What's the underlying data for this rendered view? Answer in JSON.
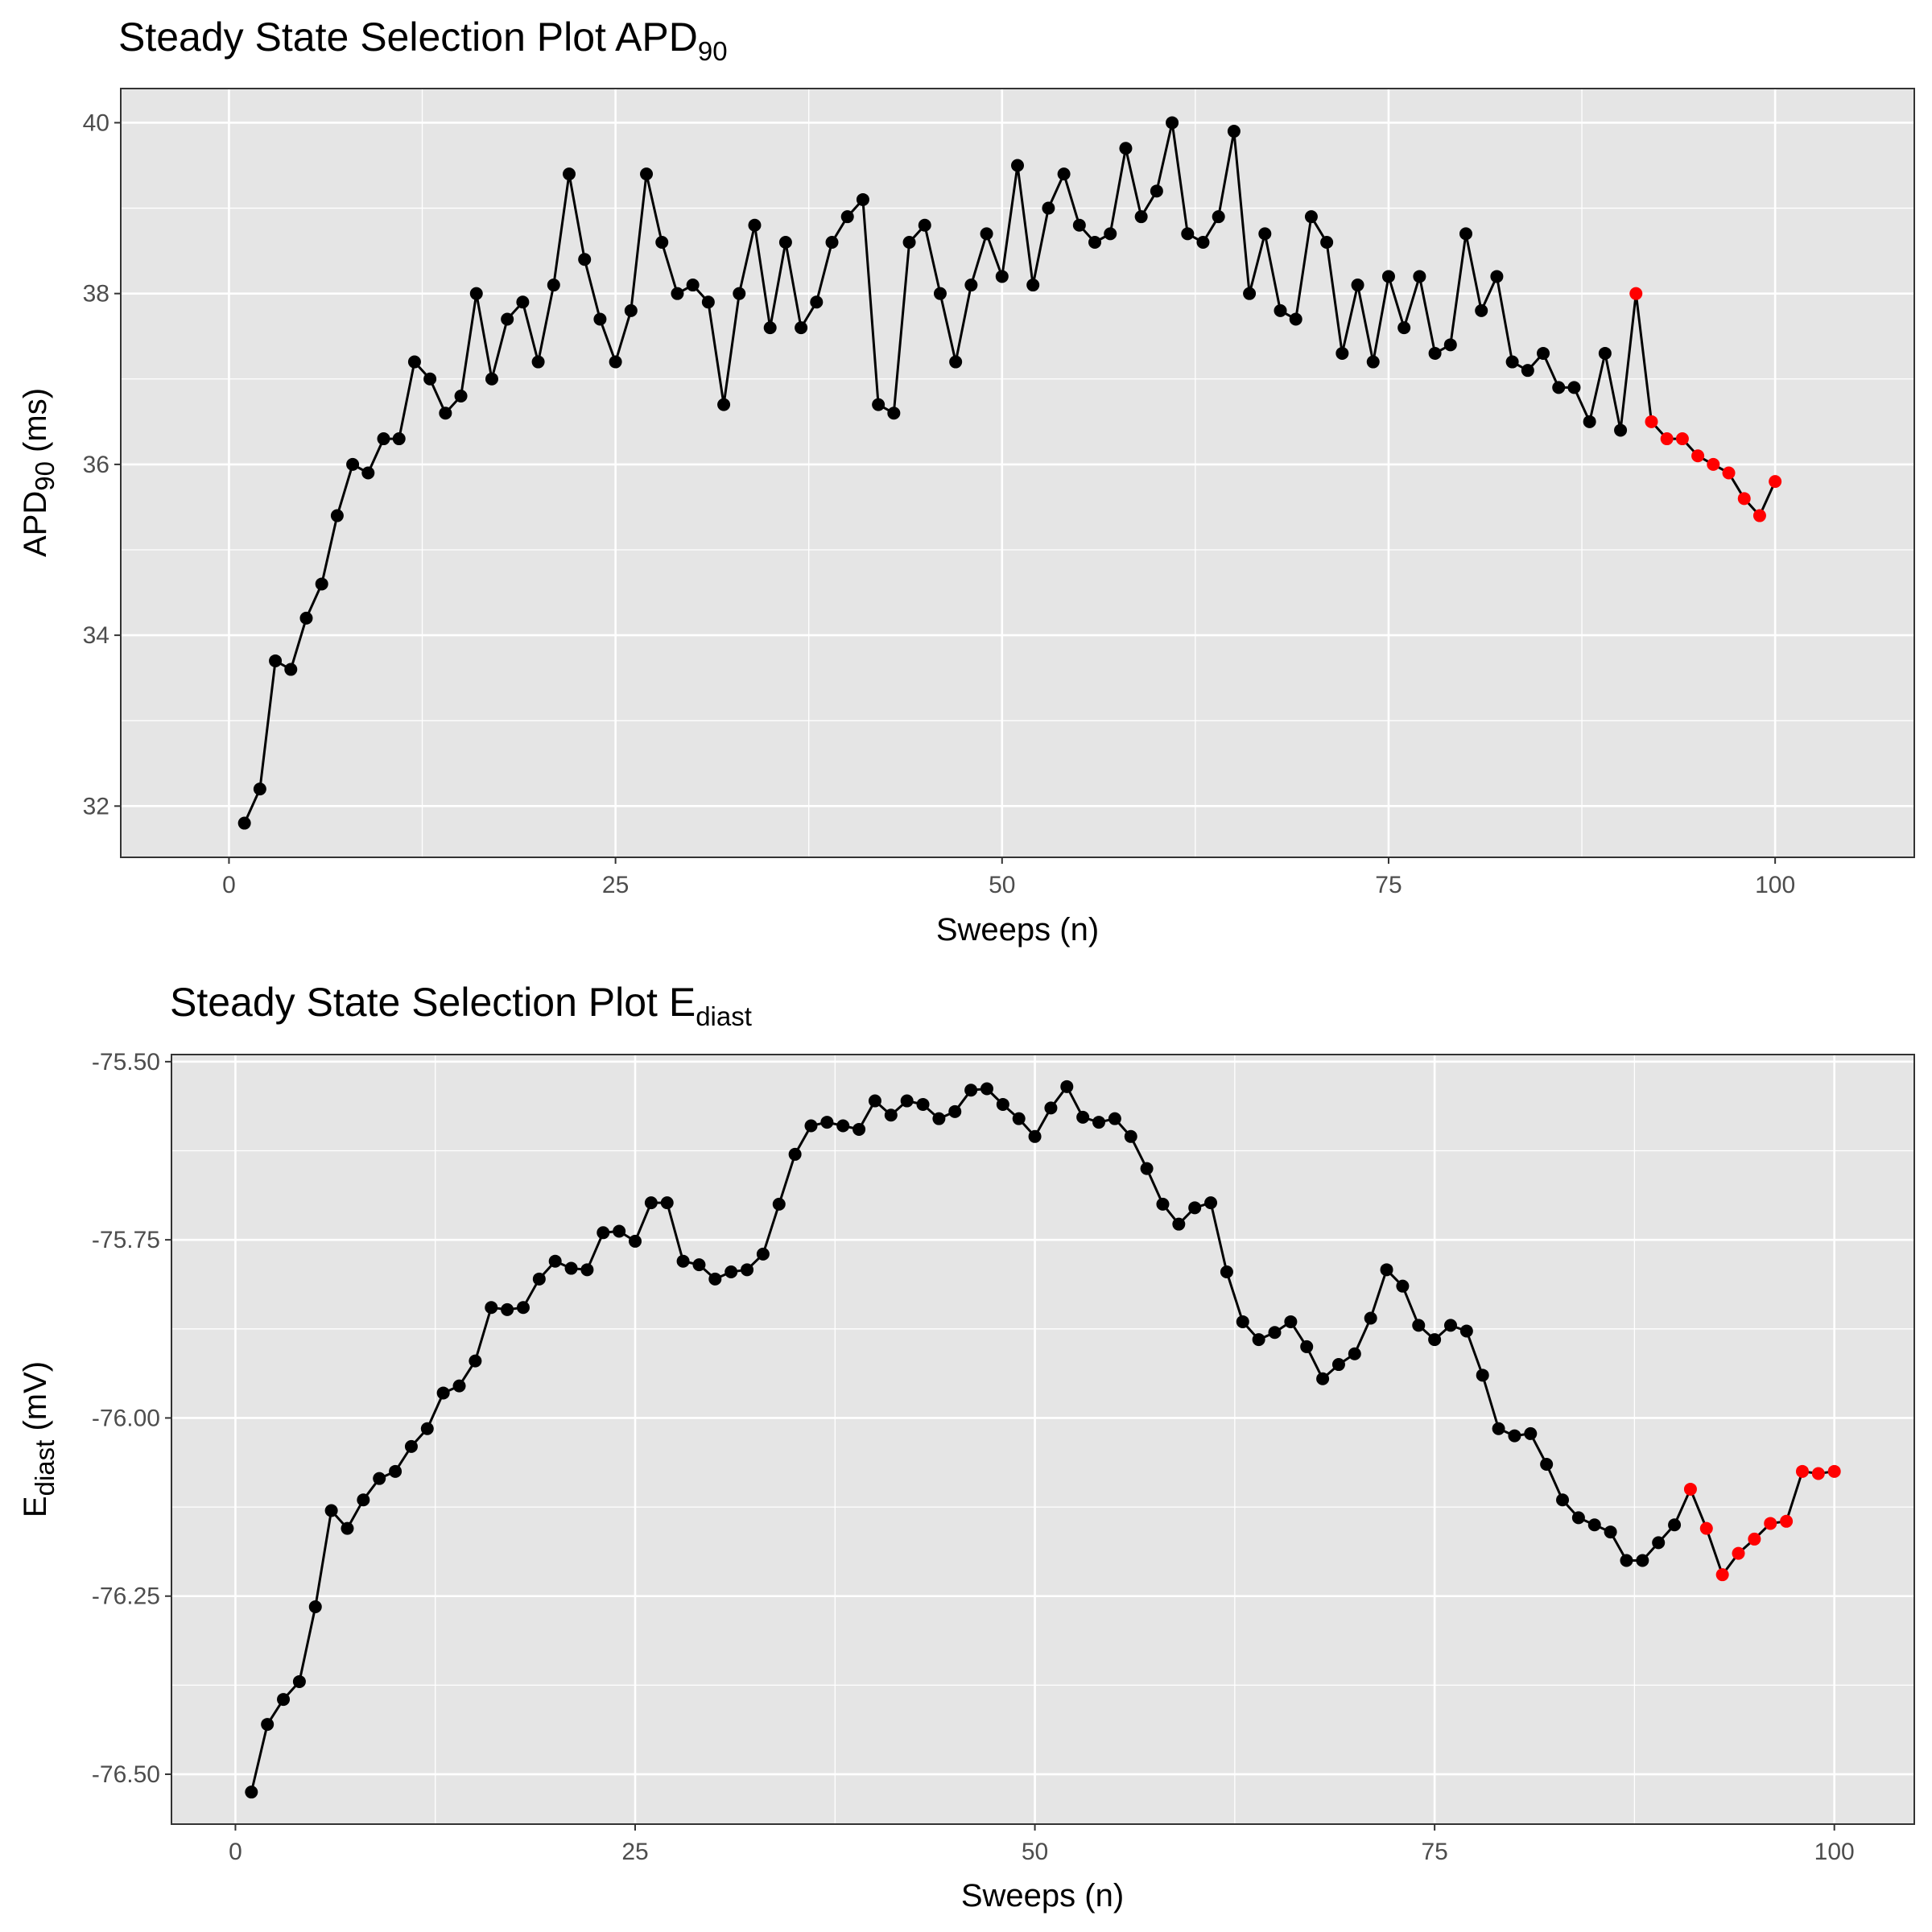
{
  "chart_data": [
    {
      "type": "line",
      "title": "Steady State Selection Plot APD",
      "title_subscript": "90",
      "xlabel": "Sweeps (n)",
      "ylabel": "APD",
      "ylabel_subscript": "90",
      "ylabel_unit": " (ms)",
      "xlim": [
        -7,
        109
      ],
      "ylim": [
        31.4,
        40.4
      ],
      "x_ticks": [
        0,
        25,
        50,
        75,
        100
      ],
      "x_tick_labels": [
        "0",
        "25",
        "50",
        "75",
        "100"
      ],
      "y_ticks": [
        32,
        34,
        36,
        38,
        40
      ],
      "y_tick_labels": [
        "32",
        "34",
        "36",
        "38",
        "40"
      ],
      "grid": true,
      "colors": {
        "line": "#000000",
        "normal_point": "#000000",
        "selected_point": "#FF0000",
        "panel": "#E5E5E5",
        "grid": "#FFFFFF"
      },
      "selected_from_sweep": 91,
      "x": [
        1,
        2,
        3,
        4,
        5,
        6,
        7,
        8,
        9,
        10,
        11,
        12,
        13,
        14,
        15,
        16,
        17,
        18,
        19,
        20,
        21,
        22,
        23,
        24,
        25,
        26,
        27,
        28,
        29,
        30,
        31,
        32,
        33,
        34,
        35,
        36,
        37,
        38,
        39,
        40,
        41,
        42,
        43,
        44,
        45,
        46,
        47,
        48,
        49,
        50,
        51,
        52,
        53,
        54,
        55,
        56,
        57,
        58,
        59,
        60,
        61,
        62,
        63,
        64,
        65,
        66,
        67,
        68,
        69,
        70,
        71,
        72,
        73,
        74,
        75,
        76,
        77,
        78,
        79,
        80,
        81,
        82,
        83,
        84,
        85,
        86,
        87,
        88,
        89,
        90,
        91,
        92,
        93,
        94,
        95,
        96,
        97,
        98,
        99,
        100
      ],
      "values": [
        31.8,
        32.2,
        33.7,
        33.6,
        34.2,
        34.6,
        35.4,
        36.0,
        35.9,
        36.3,
        36.3,
        37.2,
        37.0,
        36.6,
        36.8,
        38.0,
        37.0,
        37.7,
        37.9,
        37.2,
        38.1,
        39.4,
        38.4,
        37.7,
        37.2,
        37.8,
        39.4,
        38.6,
        38.0,
        38.1,
        37.9,
        36.7,
        38.0,
        38.8,
        37.6,
        38.6,
        37.6,
        37.9,
        38.6,
        38.9,
        39.1,
        36.7,
        36.6,
        38.6,
        38.8,
        38.0,
        37.2,
        38.1,
        38.7,
        38.2,
        39.5,
        38.1,
        39.0,
        39.4,
        38.8,
        38.6,
        38.7,
        39.7,
        38.9,
        39.2,
        40.0,
        38.7,
        38.6,
        38.9,
        39.9,
        38.0,
        38.7,
        37.8,
        37.7,
        38.9,
        38.6,
        37.3,
        38.1,
        37.2,
        38.2,
        37.6,
        38.2,
        37.3,
        37.4,
        38.7,
        37.8,
        38.2,
        37.2,
        37.1,
        37.3,
        36.9,
        36.9,
        36.5,
        37.3,
        36.4,
        38.0,
        36.5,
        36.3,
        36.3,
        36.1,
        36.0,
        35.9,
        35.6,
        35.4,
        35.8
      ]
    },
    {
      "type": "line",
      "title": "Steady State Selection Plot E",
      "title_subscript": "diast",
      "xlabel": "Sweeps (n)",
      "ylabel": "E",
      "ylabel_subscript": "diast",
      "ylabel_unit": " (mV)",
      "xlim": [
        -4,
        105
      ],
      "ylim": [
        -76.57,
        -75.49
      ],
      "x_ticks": [
        0,
        25,
        50,
        75,
        100
      ],
      "x_tick_labels": [
        "0",
        "25",
        "50",
        "75",
        "100"
      ],
      "y_ticks": [
        -76.5,
        -76.25,
        -76.0,
        -75.75,
        -75.5
      ],
      "y_tick_labels": [
        "-76.50",
        "-76.25",
        "-76.00",
        "-75.75",
        "-75.50"
      ],
      "grid": true,
      "colors": {
        "line": "#000000",
        "normal_point": "#000000",
        "selected_point": "#FF0000",
        "panel": "#E5E5E5",
        "grid": "#FFFFFF"
      },
      "selected_from_sweep": 91,
      "x": [
        1,
        2,
        3,
        4,
        5,
        6,
        7,
        8,
        9,
        10,
        11,
        12,
        13,
        14,
        15,
        16,
        17,
        18,
        19,
        20,
        21,
        22,
        23,
        24,
        25,
        26,
        27,
        28,
        29,
        30,
        31,
        32,
        33,
        34,
        35,
        36,
        37,
        38,
        39,
        40,
        41,
        42,
        43,
        44,
        45,
        46,
        47,
        48,
        49,
        50,
        51,
        52,
        53,
        54,
        55,
        56,
        57,
        58,
        59,
        60,
        61,
        62,
        63,
        64,
        65,
        66,
        67,
        68,
        69,
        70,
        71,
        72,
        73,
        74,
        75,
        76,
        77,
        78,
        79,
        80,
        81,
        82,
        83,
        84,
        85,
        86,
        87,
        88,
        89,
        90,
        91,
        92,
        93,
        94,
        95,
        96,
        97,
        98,
        99,
        100
      ],
      "values": [
        -76.525,
        -76.43,
        -76.395,
        -76.37,
        -76.265,
        -76.13,
        -76.155,
        -76.115,
        -76.085,
        -76.075,
        -76.04,
        -76.015,
        -75.965,
        -75.955,
        -75.92,
        -75.845,
        -75.848,
        -75.845,
        -75.805,
        -75.78,
        -75.79,
        -75.792,
        -75.74,
        -75.738,
        -75.752,
        -75.698,
        -75.698,
        -75.78,
        -75.785,
        -75.805,
        -75.795,
        -75.792,
        -75.77,
        -75.7,
        -75.63,
        -75.59,
        -75.585,
        -75.59,
        -75.595,
        -75.555,
        -75.575,
        -75.555,
        -75.56,
        -75.58,
        -75.57,
        -75.54,
        -75.538,
        -75.56,
        -75.58,
        -75.605,
        -75.565,
        -75.535,
        -75.578,
        -75.585,
        -75.58,
        -75.605,
        -75.65,
        -75.7,
        -75.728,
        -75.705,
        -75.698,
        -75.795,
        -75.865,
        -75.89,
        -75.88,
        -75.865,
        -75.9,
        -75.945,
        -75.925,
        -75.91,
        -75.86,
        -75.792,
        -75.815,
        -75.87,
        -75.89,
        -75.87,
        -75.878,
        -75.94,
        -76.015,
        -76.025,
        -76.022,
        -76.065,
        -76.115,
        -76.14,
        -76.15,
        -76.16,
        -76.2,
        -76.2,
        -76.175,
        -76.15,
        -76.1,
        -76.155,
        -76.22,
        -76.19,
        -76.17,
        -76.148,
        -76.145,
        -76.075,
        -76.078,
        -76.075
      ]
    }
  ]
}
